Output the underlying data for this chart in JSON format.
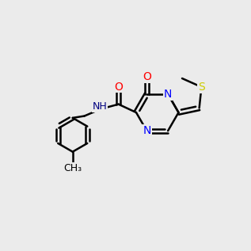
{
  "bg_color": "#ebebeb",
  "bond_color": "#000000",
  "bond_width": 1.8,
  "atom_colors": {
    "O": "#ff0000",
    "N": "#0000ff",
    "S": "#cccc00",
    "NH": "#000080",
    "C": "#000000"
  },
  "font_size_atom": 10,
  "font_size_small": 9
}
